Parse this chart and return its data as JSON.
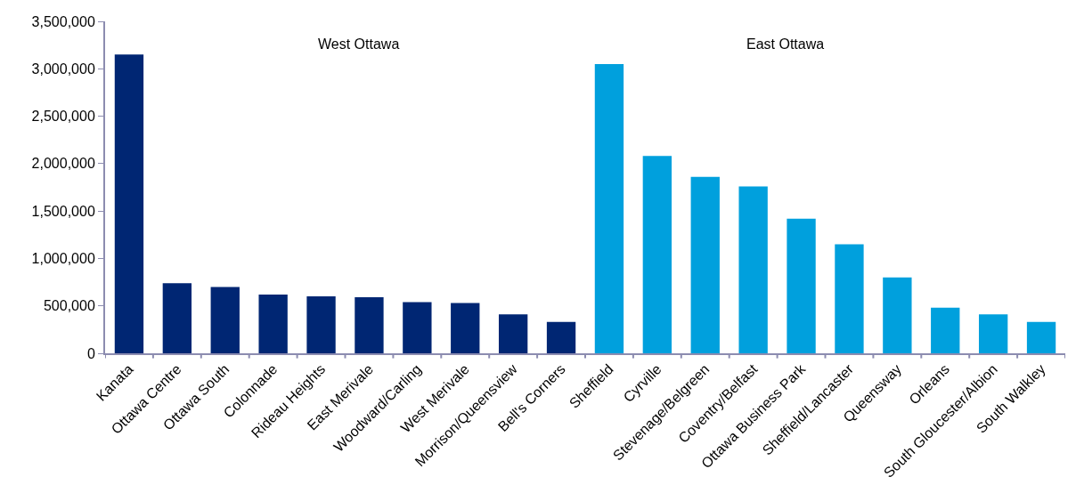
{
  "chart_data": {
    "type": "bar",
    "categories": [
      "Kanata",
      "Ottawa Centre",
      "Ottawa South",
      "Colonnade",
      "Rideau Heights",
      "East Merivale",
      "Woodward/Carling",
      "West Merivale",
      "Morrison/Queensview",
      "Bell's Corners",
      "Sheffield",
      "Cyrville",
      "Stevenage/Belgreen",
      "Coventry/Belfast",
      "Ottawa Business Park",
      "Sheffield/Lancaster",
      "Queensway",
      "Orleans",
      "South Gloucester/Albion",
      "South Walkley"
    ],
    "values": [
      3150000,
      740000,
      700000,
      620000,
      600000,
      590000,
      540000,
      530000,
      410000,
      330000,
      3050000,
      2080000,
      1860000,
      1760000,
      1420000,
      1150000,
      800000,
      480000,
      410000,
      330000
    ],
    "colors": [
      "#002673",
      "#002673",
      "#002673",
      "#002673",
      "#002673",
      "#002673",
      "#002673",
      "#002673",
      "#002673",
      "#002673",
      "#00a0dd",
      "#00a0dd",
      "#00a0dd",
      "#00a0dd",
      "#00a0dd",
      "#00a0dd",
      "#00a0dd",
      "#00a0dd",
      "#00a0dd",
      "#00a0dd"
    ],
    "annotations": [
      "West Ottawa",
      "East Ottawa"
    ],
    "ylim": [
      0,
      3500000
    ],
    "yticks": [
      {
        "value": 0,
        "label": "0"
      },
      {
        "value": 500000,
        "label": "500,000"
      },
      {
        "value": 1000000,
        "label": "1,000,000"
      },
      {
        "value": 1500000,
        "label": "1,500,000"
      },
      {
        "value": 2000000,
        "label": "2,000,000"
      },
      {
        "value": 2500000,
        "label": "2,500,000"
      },
      {
        "value": 3000000,
        "label": "3,000,000"
      },
      {
        "value": 3500000,
        "label": "3,500,000"
      }
    ],
    "tick_labels": true
  }
}
